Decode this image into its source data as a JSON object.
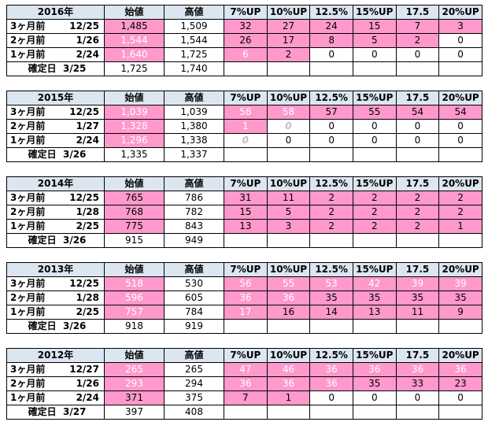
{
  "headers": {
    "open": "始値",
    "high": "高値",
    "p7": "7%UP",
    "p10": "10%UP",
    "p125": "12.5%",
    "p15": "15%UP",
    "p175": "17.5",
    "p20": "20%UP"
  },
  "colors": {
    "highlight": "#ff99cc",
    "header_bg": "#dce6f1",
    "grid": "#000000"
  },
  "blocks": [
    {
      "year": "2016年",
      "rows": [
        {
          "label": "3ヶ月前",
          "date": "12/25",
          "open": "1,485",
          "high": "1,509",
          "pcts": [
            "32",
            "27",
            "24",
            "15",
            "7",
            "3"
          ]
        },
        {
          "label": "2ヶ月前",
          "date": "1/26",
          "open": "1,544",
          "high": "1,544",
          "pcts": [
            "26",
            "17",
            "8",
            "5",
            "2",
            "0"
          ]
        },
        {
          "label": "1ヶ月前",
          "date": "2/24",
          "open": "1,640",
          "high": "1,725",
          "pcts": [
            "6",
            "2",
            "0",
            "0",
            "0",
            "0"
          ]
        },
        {
          "label": "確定日",
          "date": "3/25",
          "open": "1,725",
          "high": "1,740"
        }
      ]
    },
    {
      "year": "2015年",
      "rows": [
        {
          "label": "3ヶ月前",
          "date": "12/25",
          "open": "1,039",
          "high": "1,039",
          "pcts": [
            "58",
            "58",
            "57",
            "55",
            "54",
            "54"
          ]
        },
        {
          "label": "2ヶ月前",
          "date": "1/27",
          "open": "1,328",
          "high": "1,380",
          "pcts": [
            "1",
            "0",
            "0",
            "0",
            "0",
            "0"
          ]
        },
        {
          "label": "1ヶ月前",
          "date": "2/24",
          "open": "1,296",
          "high": "1,338",
          "pcts": [
            "0",
            "0",
            "0",
            "0",
            "0",
            "0"
          ]
        },
        {
          "label": "確定日",
          "date": "3/26",
          "open": "1,335",
          "high": "1,337"
        }
      ]
    },
    {
      "year": "2014年",
      "rows": [
        {
          "label": "3ヶ月前",
          "date": "12/25",
          "open": "765",
          "high": "786",
          "pcts": [
            "31",
            "11",
            "2",
            "2",
            "2",
            "2"
          ]
        },
        {
          "label": "2ヶ月前",
          "date": "1/28",
          "open": "768",
          "high": "782",
          "pcts": [
            "15",
            "5",
            "2",
            "2",
            "2",
            "2"
          ]
        },
        {
          "label": "1ヶ月前",
          "date": "2/25",
          "open": "775",
          "high": "843",
          "pcts": [
            "13",
            "3",
            "2",
            "2",
            "2",
            "1"
          ]
        },
        {
          "label": "確定日",
          "date": "3/26",
          "open": "915",
          "high": "949"
        }
      ]
    },
    {
      "year": "2013年",
      "rows": [
        {
          "label": "3ヶ月前",
          "date": "12/25",
          "open": "518",
          "high": "530",
          "pcts": [
            "56",
            "55",
            "53",
            "42",
            "39",
            "39"
          ]
        },
        {
          "label": "2ヶ月前",
          "date": "1/28",
          "open": "596",
          "high": "605",
          "pcts": [
            "36",
            "36",
            "35",
            "35",
            "35",
            "35"
          ]
        },
        {
          "label": "1ヶ月前",
          "date": "2/25",
          "open": "757",
          "high": "784",
          "pcts": [
            "17",
            "16",
            "14",
            "13",
            "11",
            "9"
          ]
        },
        {
          "label": "確定日",
          "date": "3/26",
          "open": "918",
          "high": "919"
        }
      ]
    },
    {
      "year": "2012年",
      "rows": [
        {
          "label": "3ヶ月前",
          "date": "12/27",
          "open": "265",
          "high": "265",
          "pcts": [
            "47",
            "46",
            "36",
            "36",
            "36",
            "36"
          ]
        },
        {
          "label": "2ヶ月前",
          "date": "1/26",
          "open": "293",
          "high": "294",
          "pcts": [
            "36",
            "36",
            "36",
            "35",
            "33",
            "23"
          ]
        },
        {
          "label": "1ヶ月前",
          "date": "2/24",
          "open": "371",
          "high": "375",
          "pcts": [
            "7",
            "1",
            "0",
            "0",
            "0",
            "0"
          ]
        },
        {
          "label": "確定日",
          "date": "3/27",
          "open": "397",
          "high": "408"
        }
      ]
    }
  ]
}
